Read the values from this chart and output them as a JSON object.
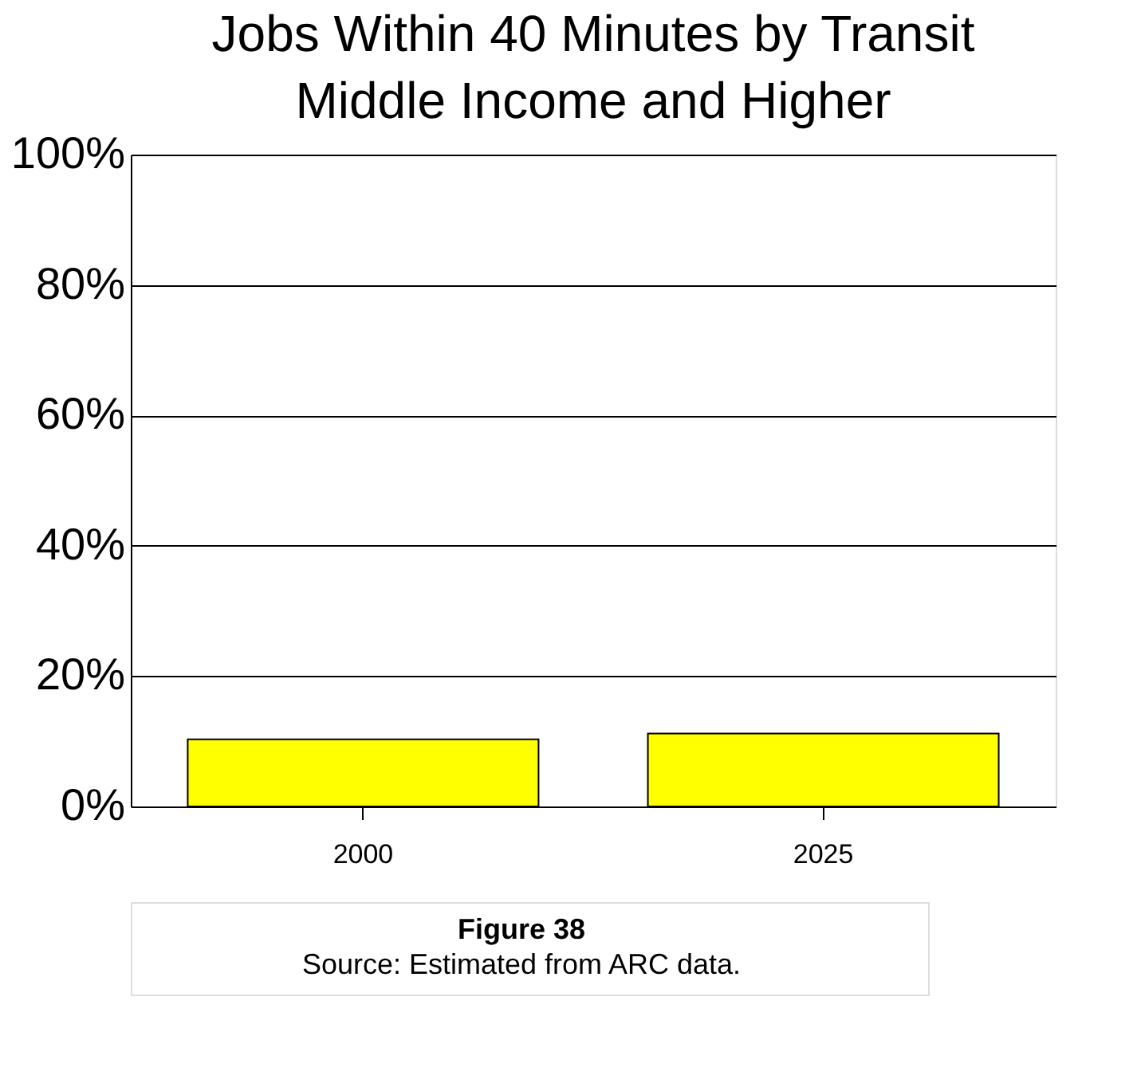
{
  "chart_data": {
    "type": "bar",
    "title": "Jobs Within 40 Minutes by Transit",
    "subtitle": "Middle Income and Higher",
    "categories": [
      "2000",
      "2025"
    ],
    "values": [
      10.3,
      11.2
    ],
    "color": "#ffff00",
    "ylim": [
      0,
      100
    ],
    "yticks": [
      {
        "value": 0,
        "label": "0%"
      },
      {
        "value": 20,
        "label": "20%"
      },
      {
        "value": 40,
        "label": "40%"
      },
      {
        "value": 60,
        "label": "60%"
      },
      {
        "value": 80,
        "label": "80%"
      },
      {
        "value": 100,
        "label": "100%"
      }
    ],
    "grid": "y",
    "annotations": [
      "Figure 38",
      "Source: Estimated from ARC data."
    ]
  }
}
